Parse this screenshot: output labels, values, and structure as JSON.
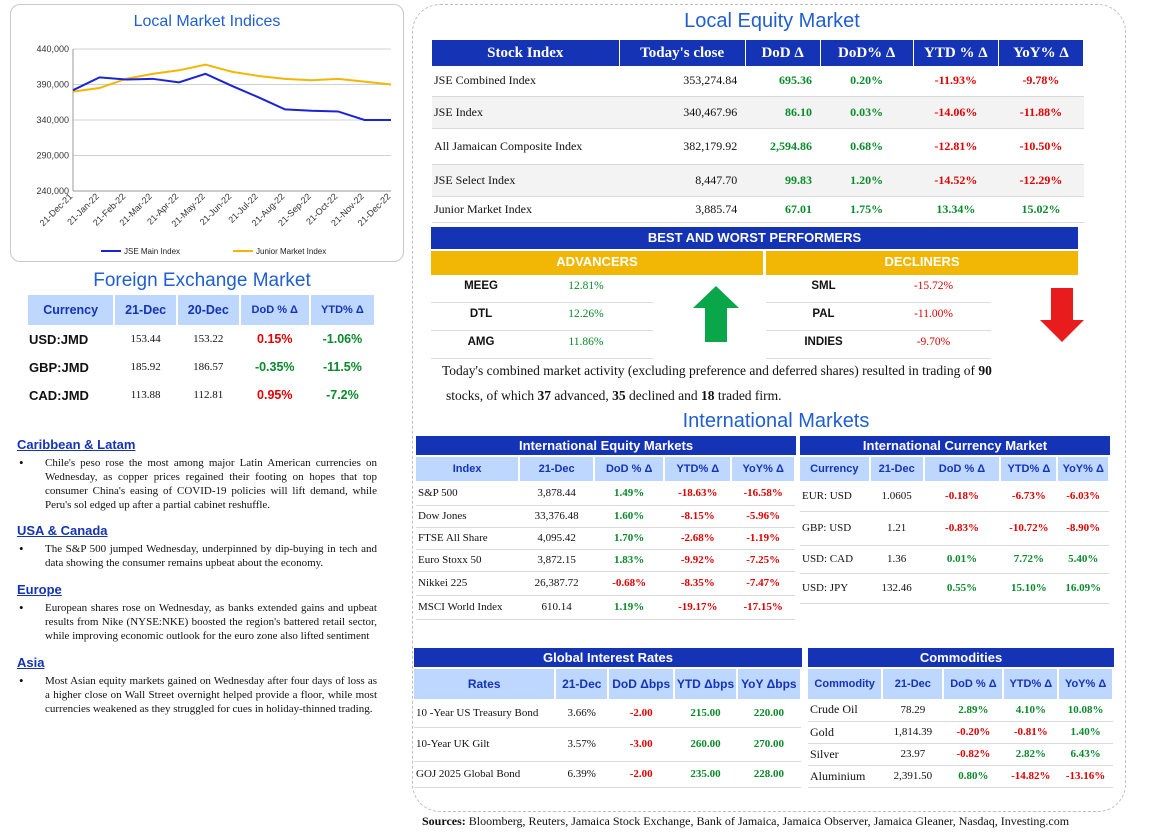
{
  "lmi": {
    "title": "Local Market Indices",
    "yticks": [
      "440,000",
      "390,000",
      "340,000",
      "290,000",
      "240,000"
    ],
    "xticks": [
      "21-Dec-21",
      "21-Jan-22",
      "21-Feb-22",
      "21-Mar-22",
      "21-Apr-22",
      "21-May-22",
      "21-Jun-22",
      "21-Jul-22",
      "21-Aug-22",
      "21-Sep-22",
      "21-Oct-22",
      "21-Nov-22",
      "21-Dec-22"
    ],
    "legend": [
      "JSE Main Index",
      "Junior Market Index"
    ],
    "colors": {
      "jse": "#1a23d6",
      "junior": "#f2b705"
    }
  },
  "chart_data": {
    "type": "line",
    "title": "Local Market Indices",
    "ylim": [
      240000,
      440000
    ],
    "x": [
      "21-Dec-21",
      "21-Jan-22",
      "21-Feb-22",
      "21-Mar-22",
      "21-Apr-22",
      "21-May-22",
      "21-Jun-22",
      "21-Jul-22",
      "21-Aug-22",
      "21-Sep-22",
      "21-Oct-22",
      "21-Nov-22",
      "21-Dec-22"
    ],
    "series": [
      {
        "name": "JSE Main Index",
        "values": [
          382000,
          400000,
          397000,
          398000,
          393000,
          405000,
          388000,
          372000,
          355000,
          353000,
          352000,
          340000,
          340000
        ]
      },
      {
        "name": "Junior Market Index",
        "values": [
          380000,
          385000,
          398000,
          405000,
          410000,
          418000,
          408000,
          402000,
          398000,
          396000,
          398000,
          394000,
          390000
        ]
      }
    ],
    "legend": "bottom"
  },
  "fx": {
    "title": "Foreign Exchange Market",
    "headers": [
      "Currency",
      "21-Dec",
      "20-Dec",
      "DoD % Δ",
      "YTD% Δ"
    ],
    "rows": [
      {
        "c": "USD:JMD",
        "a": "153.44",
        "b": "153.22",
        "d": "0.15%",
        "y": "-1.06%",
        "dneg": true,
        "yneg": false
      },
      {
        "c": "GBP:JMD",
        "a": "185.92",
        "b": "186.57",
        "d": "-0.35%",
        "y": "-11.5%",
        "dneg": false,
        "yneg": false
      },
      {
        "c": "CAD:JMD",
        "a": "113.88",
        "b": "112.81",
        "d": "0.95%",
        "y": "-7.2%",
        "dneg": true,
        "yneg": false
      }
    ]
  },
  "news": [
    {
      "head": "Caribbean & Latam",
      "text": "Chile's peso rose the most among major Latin American currencies on Wednesday, as copper prices regained their footing on hopes that top consumer China's easing of COVID-19 policies will lift demand, while Peru's sol edged up after a partial cabinet reshuffle."
    },
    {
      "head": "USA & Canada",
      "text": "The S&P 500 jumped Wednesday, underpinned by dip-buying in tech and data showing the consumer remains upbeat about the economy."
    },
    {
      "head": "Europe",
      "text": "European shares rose on Wednesday, as banks extended gains and upbeat results from Nike (NYSE:NKE) boosted the region's battered retail sector, while improving economic outlook for the euro zone also lifted sentiment"
    },
    {
      "head": "Asia",
      "text": "Most Asian equity markets gained on Wednesday after four days of loss as a higher close on Wall Street overnight helped provide a floor, while most currencies weakened as they struggled for cues in holiday-thinned trading."
    }
  ],
  "equity": {
    "title": "Local Equity Market",
    "headers": [
      "Stock Index",
      "Today's close",
      "DoD  Δ",
      "DoD% Δ",
      "YTD % Δ",
      "YoY% Δ"
    ],
    "rows": [
      [
        "JSE Combined Index",
        "353,274.84",
        "695.36",
        "0.20%",
        "-11.93%",
        "-9.78%"
      ],
      [
        "JSE Index",
        "340,467.96",
        "86.10",
        "0.03%",
        "-14.06%",
        "-11.88%"
      ],
      [
        "All Jamaican Composite Index",
        "382,179.92",
        "2,594.86",
        "0.68%",
        "-12.81%",
        "-10.50%"
      ],
      [
        "JSE Select Index",
        "8,447.70",
        "99.83",
        "1.20%",
        "-14.52%",
        "-12.29%"
      ],
      [
        "Junior Market Index",
        "3,885.74",
        "67.01",
        "1.75%",
        "13.34%",
        "15.02%"
      ]
    ]
  },
  "performers": {
    "title": "BEST AND WORST PERFORMERS",
    "adv_label": "ADVANCERS",
    "dec_label": "DECLINERS",
    "advancers": [
      [
        "MEEG",
        "12.81%"
      ],
      [
        "DTL",
        "12.26%"
      ],
      [
        "AMG",
        "11.86%"
      ]
    ],
    "decliners": [
      [
        "SML",
        "-15.72%"
      ],
      [
        "PAL",
        "-11.00%"
      ],
      [
        "INDIES",
        "-9.70%"
      ]
    ],
    "summary_a": "Today's combined market activity (excluding preference and deferred shares) resulted in trading of",
    "n_total": "90",
    "summary_b": "stocks, of which",
    "n_adv": "37",
    "summary_c": "advanced,",
    "n_dec": "35",
    "summary_d": "declined and",
    "n_firm": "18",
    "summary_e": "traded firm."
  },
  "intl": {
    "title": "International Markets",
    "equity": {
      "title": "International Equity Markets",
      "headers": [
        "Index",
        "21-Dec",
        "DoD % Δ",
        "YTD% Δ",
        "YoY% Δ"
      ],
      "rows": [
        [
          "S&P 500",
          "3,878.44",
          "1.49%",
          "-18.63%",
          "-16.58%"
        ],
        [
          "Dow Jones",
          "33,376.48",
          "1.60%",
          "-8.15%",
          "-5.96%"
        ],
        [
          "FTSE All Share",
          "4,095.42",
          "1.70%",
          "-2.68%",
          "-1.19%"
        ],
        [
          "Euro Stoxx 50",
          "3,872.15",
          "1.83%",
          "-9.92%",
          "-7.25%"
        ],
        [
          "Nikkei 225",
          "26,387.72",
          "-0.68%",
          "-8.35%",
          "-7.47%"
        ],
        [
          "MSCI World Index",
          "610.14",
          "1.19%",
          "-19.17%",
          "-17.15%"
        ]
      ]
    },
    "currency": {
      "title": "International Currency Market",
      "headers": [
        "Currency",
        "21-Dec",
        "DoD % Δ",
        "YTD% Δ",
        "YoY% Δ"
      ],
      "rows": [
        [
          "EUR: USD",
          "1.0605",
          "-0.18%",
          "-6.73%",
          "-6.03%"
        ],
        [
          "GBP: USD",
          "1.21",
          "-0.83%",
          "-10.72%",
          "-8.90%"
        ],
        [
          "USD: CAD",
          "1.36",
          "0.01%",
          "7.72%",
          "5.40%"
        ],
        [
          "USD: JPY",
          "132.46",
          "0.55%",
          "15.10%",
          "16.09%"
        ]
      ]
    },
    "rates": {
      "title": "Global Interest Rates",
      "headers": [
        "Rates",
        "21-Dec",
        "DoD Δbps",
        "YTD Δbps",
        "YoY Δbps"
      ],
      "rows": [
        [
          "10 -Year US Treasury Bond",
          "3.66%",
          "-2.00",
          "215.00",
          "220.00"
        ],
        [
          "10-Year UK Gilt",
          "3.57%",
          "-3.00",
          "260.00",
          "270.00"
        ],
        [
          "GOJ 2025 Global Bond",
          "6.39%",
          "-2.00",
          "235.00",
          "228.00"
        ]
      ]
    },
    "commodities": {
      "title": "Commodities",
      "headers": [
        "Commodity",
        "21-Dec",
        "DoD % Δ",
        "YTD% Δ",
        "YoY% Δ"
      ],
      "rows": [
        [
          "Crude Oil",
          "78.29",
          "2.89%",
          "4.10%",
          "10.08%"
        ],
        [
          "Gold",
          "1,814.39",
          "-0.20%",
          "-0.81%",
          "1.40%"
        ],
        [
          "Silver",
          "23.97",
          "-0.82%",
          "2.82%",
          "6.43%"
        ],
        [
          "Aluminium",
          "2,391.50",
          "0.80%",
          "-14.82%",
          "-13.16%"
        ]
      ]
    }
  },
  "sources": {
    "label": "Sources:",
    "text": " Bloomberg, Reuters, Jamaica Stock Exchange, Bank of Jamaica, Jamaica Observer, Jamaica Gleaner, Nasdaq, Investing.com"
  }
}
